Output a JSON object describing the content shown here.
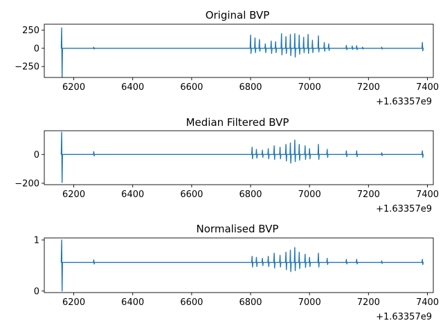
{
  "chart_data": [
    {
      "type": "line",
      "title": "Original BVP",
      "x_offset_label": "+1.63357e9",
      "xlim": [
        6100,
        7420
      ],
      "ylim": [
        -400,
        330
      ],
      "xticks": [
        6200,
        6400,
        6600,
        6800,
        7000,
        7200,
        7400
      ],
      "xtick_labels": [
        "6200",
        "6400",
        "6600",
        "6800",
        "7000",
        "7200",
        "7400"
      ],
      "yticks": [
        250,
        0,
        -250
      ],
      "ytick_labels": [
        "250",
        "0",
        "−250"
      ],
      "baseline": 0,
      "series_color": "#1f77b4",
      "x_start": 6158,
      "x_end": 7383,
      "spikes": [
        {
          "x": 6159,
          "min": -395,
          "max": 280
        },
        {
          "x": 6268,
          "min": -10,
          "max": 15
        },
        {
          "x": 6800,
          "min": -70,
          "max": 180
        },
        {
          "x": 6815,
          "min": -60,
          "max": 140
        },
        {
          "x": 6830,
          "min": -40,
          "max": 120
        },
        {
          "x": 6850,
          "min": -60,
          "max": 60
        },
        {
          "x": 6870,
          "min": -70,
          "max": 100
        },
        {
          "x": 6885,
          "min": -60,
          "max": 90
        },
        {
          "x": 6905,
          "min": -90,
          "max": 200
        },
        {
          "x": 6920,
          "min": -70,
          "max": 160
        },
        {
          "x": 6935,
          "min": -100,
          "max": 190
        },
        {
          "x": 6950,
          "min": -120,
          "max": 200
        },
        {
          "x": 6965,
          "min": -80,
          "max": 180
        },
        {
          "x": 6980,
          "min": -60,
          "max": 150
        },
        {
          "x": 6995,
          "min": -70,
          "max": 190
        },
        {
          "x": 7010,
          "min": -60,
          "max": 110
        },
        {
          "x": 7030,
          "min": -50,
          "max": 170
        },
        {
          "x": 7050,
          "min": -40,
          "max": 80
        },
        {
          "x": 7065,
          "min": -30,
          "max": 60
        },
        {
          "x": 7125,
          "min": -20,
          "max": 40
        },
        {
          "x": 7145,
          "min": -15,
          "max": 30
        },
        {
          "x": 7160,
          "min": -20,
          "max": 35
        },
        {
          "x": 7180,
          "min": -10,
          "max": 15
        },
        {
          "x": 7245,
          "min": -10,
          "max": 15
        },
        {
          "x": 7383,
          "min": -35,
          "max": 80
        }
      ]
    },
    {
      "type": "line",
      "title": "Median Filtered BVP",
      "x_offset_label": "+1.63357e9",
      "xlim": [
        6100,
        7420
      ],
      "ylim": [
        -210,
        165
      ],
      "xticks": [
        6200,
        6400,
        6600,
        6800,
        7000,
        7200,
        7400
      ],
      "xtick_labels": [
        "6200",
        "6400",
        "6600",
        "6800",
        "7000",
        "7200",
        "7400"
      ],
      "yticks": [
        0,
        -200
      ],
      "ytick_labels": [
        "0",
        "−200"
      ],
      "baseline": 0,
      "series_color": "#1f77b4",
      "x_start": 6158,
      "x_end": 7383,
      "spikes": [
        {
          "x": 6159,
          "min": -195,
          "max": 155
        },
        {
          "x": 6268,
          "min": -10,
          "max": 20
        },
        {
          "x": 6805,
          "min": -30,
          "max": 50
        },
        {
          "x": 6820,
          "min": -25,
          "max": 35
        },
        {
          "x": 6840,
          "min": -20,
          "max": 30
        },
        {
          "x": 6860,
          "min": -30,
          "max": 40
        },
        {
          "x": 6880,
          "min": -35,
          "max": 60
        },
        {
          "x": 6900,
          "min": -30,
          "max": 50
        },
        {
          "x": 6920,
          "min": -45,
          "max": 70
        },
        {
          "x": 6935,
          "min": -60,
          "max": 80
        },
        {
          "x": 6950,
          "min": -50,
          "max": 100
        },
        {
          "x": 6965,
          "min": -40,
          "max": 70
        },
        {
          "x": 6985,
          "min": -35,
          "max": 60
        },
        {
          "x": 7000,
          "min": -30,
          "max": 40
        },
        {
          "x": 7030,
          "min": -35,
          "max": 70
        },
        {
          "x": 7060,
          "min": -20,
          "max": 35
        },
        {
          "x": 7125,
          "min": -15,
          "max": 25
        },
        {
          "x": 7160,
          "min": -15,
          "max": 25
        },
        {
          "x": 7245,
          "min": -8,
          "max": 12
        },
        {
          "x": 7383,
          "min": -20,
          "max": 25
        }
      ]
    },
    {
      "type": "line",
      "title": "Normalised BVP",
      "x_offset_label": "+1.63357e9",
      "xlim": [
        6100,
        7420
      ],
      "ylim": [
        -0.03,
        1.04
      ],
      "xticks": [
        6200,
        6400,
        6600,
        6800,
        7000,
        7200,
        7400
      ],
      "xtick_labels": [
        "6200",
        "6400",
        "6600",
        "6800",
        "7000",
        "7200",
        "7400"
      ],
      "yticks": [
        1,
        0
      ],
      "ytick_labels": [
        "1",
        "0"
      ],
      "baseline": 0.56,
      "series_color": "#1f77b4",
      "x_start": 6158,
      "x_end": 7383,
      "spikes": [
        {
          "x": 6159,
          "min": 0.0,
          "max": 1.0
        },
        {
          "x": 6268,
          "min": 0.53,
          "max": 0.61
        },
        {
          "x": 6805,
          "min": 0.47,
          "max": 0.68
        },
        {
          "x": 6820,
          "min": 0.48,
          "max": 0.66
        },
        {
          "x": 6840,
          "min": 0.5,
          "max": 0.64
        },
        {
          "x": 6860,
          "min": 0.48,
          "max": 0.68
        },
        {
          "x": 6880,
          "min": 0.45,
          "max": 0.74
        },
        {
          "x": 6900,
          "min": 0.47,
          "max": 0.7
        },
        {
          "x": 6920,
          "min": 0.42,
          "max": 0.76
        },
        {
          "x": 6935,
          "min": 0.38,
          "max": 0.8
        },
        {
          "x": 6950,
          "min": 0.4,
          "max": 0.85
        },
        {
          "x": 6965,
          "min": 0.44,
          "max": 0.76
        },
        {
          "x": 6985,
          "min": 0.46,
          "max": 0.72
        },
        {
          "x": 7000,
          "min": 0.48,
          "max": 0.66
        },
        {
          "x": 7030,
          "min": 0.47,
          "max": 0.74
        },
        {
          "x": 7060,
          "min": 0.52,
          "max": 0.64
        },
        {
          "x": 7125,
          "min": 0.53,
          "max": 0.62
        },
        {
          "x": 7160,
          "min": 0.53,
          "max": 0.62
        },
        {
          "x": 7245,
          "min": 0.54,
          "max": 0.59
        },
        {
          "x": 7383,
          "min": 0.52,
          "max": 0.62
        }
      ]
    }
  ]
}
